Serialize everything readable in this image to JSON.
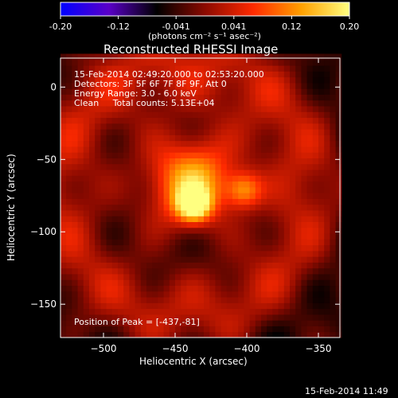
{
  "chart_data": {
    "type": "heatmap",
    "title": "Reconstructed RHESSI Image",
    "xlabel": "Heliocentric X (arcsec)",
    "ylabel": "Heliocentric Y (arcsec)",
    "xlim": [
      -530,
      -335
    ],
    "ylim": [
      -173,
      20
    ],
    "x_ticks": [
      -500,
      -450,
      -400,
      -350
    ],
    "y_ticks": [
      0,
      -50,
      -100,
      -150
    ],
    "colorbar": {
      "range": [
        -0.2,
        0.2
      ],
      "ticks": [
        "-0.20",
        "-0.12",
        "-0.041",
        "0.041",
        "0.12",
        "0.20"
      ],
      "unit_label": "(photons cm⁻² s⁻¹ asec⁻²)",
      "colormap": [
        "#0000ff",
        "#5a00c8",
        "#000000",
        "#8b0a00",
        "#ff2a00",
        "#ffa000",
        "#ffff80"
      ]
    },
    "annotations": [
      "15-Feb-2014 02:49:20.000 to 02:53:20.000",
      "Detectors: 3F 5F 6F 7F 8F 9F, Att 0",
      "Energy Range: 3.0 - 6.0 keV",
      "Clean     Total counts: 5.13E+04"
    ],
    "peak_label": "Position of Peak = [-437,-81]",
    "sources": [
      {
        "x": -437,
        "y": -81,
        "sigma": 8,
        "amplitude": 0.2
      },
      {
        "x": -402,
        "y": -71,
        "sigma": 9,
        "amplitude": 0.13
      },
      {
        "x": -432,
        "y": -62,
        "sigma": 20,
        "amplitude": 0.09
      },
      {
        "x": -445,
        "y": -55,
        "sigma": 50,
        "amplitude": 0.05
      }
    ],
    "footer_date": "15-Feb-2014 11:49"
  }
}
